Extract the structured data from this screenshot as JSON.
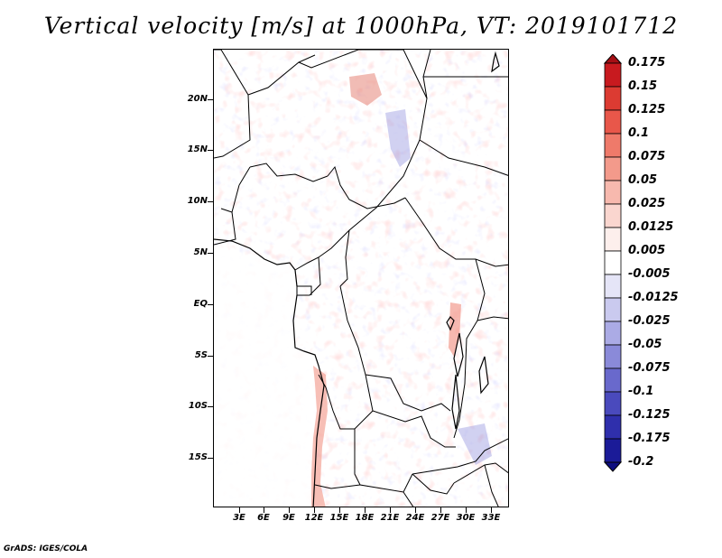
{
  "title": "Vertical velocity [m/s] at 1000hPa, VT: 2019101712",
  "footer": "GrADS: IGES/COLA",
  "map": {
    "lat_labels": [
      "20N",
      "15N",
      "10N",
      "5N",
      "EQ",
      "5S",
      "10S",
      "15S"
    ],
    "lon_labels": [
      "3E",
      "6E",
      "9E",
      "12E",
      "15E",
      "18E",
      "21E",
      "24E",
      "27E",
      "30E",
      "33E"
    ]
  },
  "colorbar": {
    "labels": [
      "0.175",
      "0.15",
      "0.125",
      "0.1",
      "0.075",
      "0.05",
      "0.025",
      "0.0125",
      "0.005",
      "-0.005",
      "-0.0125",
      "-0.025",
      "-0.05",
      "-0.075",
      "-0.1",
      "-0.125",
      "-0.175",
      "-0.2"
    ],
    "colors": [
      "#a50f15",
      "#c81a1f",
      "#dc3b32",
      "#e8574a",
      "#ef7a6a",
      "#f39a8b",
      "#f7b9ae",
      "#fad6cf",
      "#fdefec",
      "#ffffff",
      "#e5e5f7",
      "#cacaef",
      "#ababe5",
      "#8a8ad9",
      "#6969cc",
      "#4a4abd",
      "#2f2fac",
      "#1b1b98",
      "#0e0e80"
    ]
  }
}
